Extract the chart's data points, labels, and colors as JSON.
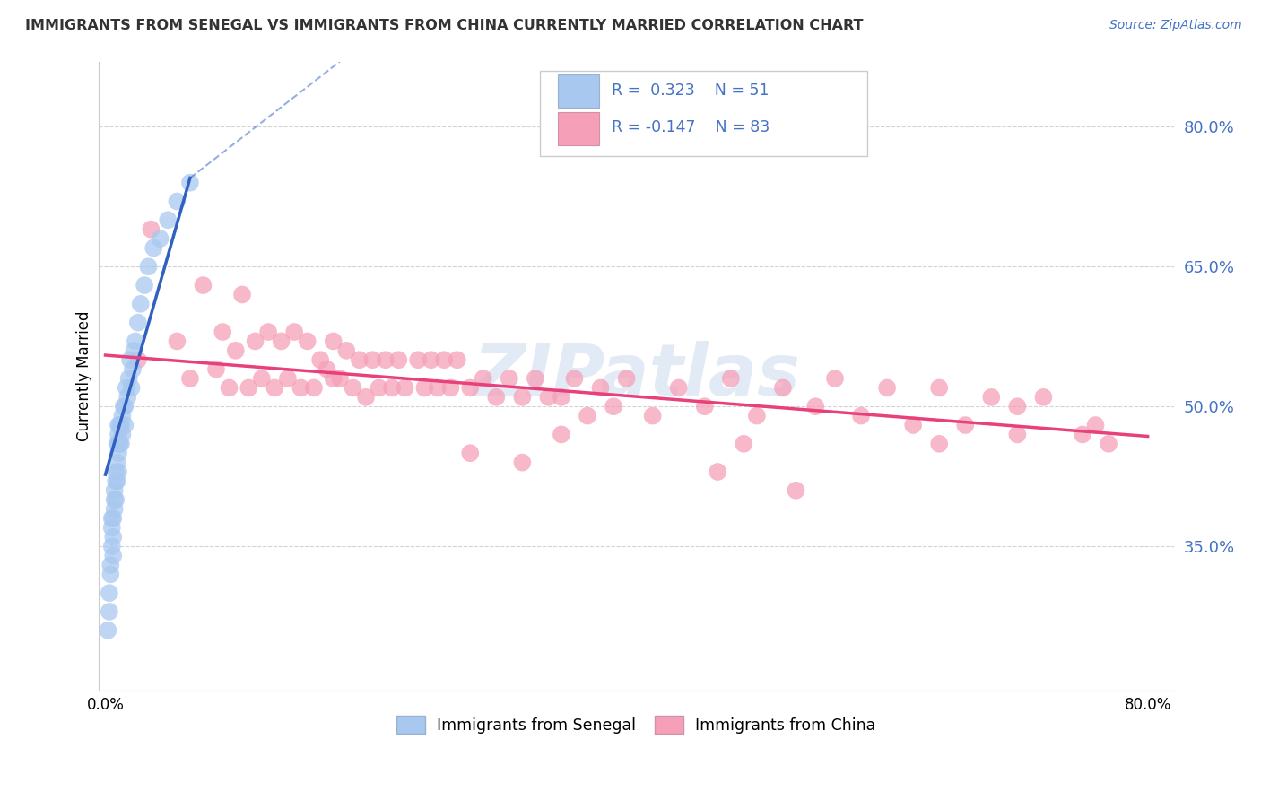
{
  "title": "IMMIGRANTS FROM SENEGAL VS IMMIGRANTS FROM CHINA CURRENTLY MARRIED CORRELATION CHART",
  "source": "Source: ZipAtlas.com",
  "ylabel": "Currently Married",
  "xlabel_senegal": "Immigrants from Senegal",
  "xlabel_china": "Immigrants from China",
  "xlim": [
    -0.005,
    0.82
  ],
  "ylim": [
    0.195,
    0.87
  ],
  "yticks": [
    0.35,
    0.5,
    0.65,
    0.8
  ],
  "ytick_labels": [
    "35.0%",
    "50.0%",
    "65.0%",
    "80.0%"
  ],
  "legend_r_senegal": "R =  0.323",
  "legend_n_senegal": "N = 51",
  "legend_r_china": "R = -0.147",
  "legend_n_china": "N = 83",
  "color_senegal": "#a8c8f0",
  "color_china": "#f5a0b8",
  "trendline_senegal_color": "#3060c0",
  "trendline_china_color": "#e8407a",
  "watermark": "ZIPatlas",
  "title_color": "#333333",
  "source_color": "#4472c4",
  "tick_color": "#4472c4",
  "senegal_x": [
    0.002,
    0.003,
    0.003,
    0.004,
    0.004,
    0.005,
    0.005,
    0.005,
    0.006,
    0.006,
    0.006,
    0.007,
    0.007,
    0.007,
    0.008,
    0.008,
    0.008,
    0.009,
    0.009,
    0.009,
    0.01,
    0.01,
    0.01,
    0.01,
    0.01,
    0.011,
    0.011,
    0.012,
    0.012,
    0.013,
    0.013,
    0.014,
    0.015,
    0.015,
    0.016,
    0.017,
    0.018,
    0.019,
    0.02,
    0.021,
    0.022,
    0.023,
    0.025,
    0.027,
    0.03,
    0.033,
    0.037,
    0.042,
    0.048,
    0.055,
    0.065
  ],
  "senegal_y": [
    0.26,
    0.28,
    0.3,
    0.32,
    0.33,
    0.35,
    0.37,
    0.38,
    0.34,
    0.36,
    0.38,
    0.39,
    0.4,
    0.41,
    0.4,
    0.42,
    0.43,
    0.42,
    0.44,
    0.46,
    0.43,
    0.45,
    0.46,
    0.47,
    0.48,
    0.46,
    0.48,
    0.46,
    0.48,
    0.47,
    0.49,
    0.5,
    0.48,
    0.5,
    0.52,
    0.51,
    0.53,
    0.55,
    0.52,
    0.54,
    0.56,
    0.57,
    0.59,
    0.61,
    0.63,
    0.65,
    0.67,
    0.68,
    0.7,
    0.72,
    0.74
  ],
  "china_x": [
    0.025,
    0.035,
    0.055,
    0.065,
    0.075,
    0.085,
    0.09,
    0.095,
    0.1,
    0.105,
    0.11,
    0.115,
    0.12,
    0.125,
    0.13,
    0.135,
    0.14,
    0.145,
    0.15,
    0.155,
    0.16,
    0.165,
    0.17,
    0.175,
    0.175,
    0.18,
    0.185,
    0.19,
    0.195,
    0.2,
    0.205,
    0.21,
    0.215,
    0.22,
    0.225,
    0.23,
    0.24,
    0.245,
    0.25,
    0.255,
    0.26,
    0.265,
    0.27,
    0.28,
    0.29,
    0.3,
    0.31,
    0.32,
    0.33,
    0.34,
    0.35,
    0.36,
    0.37,
    0.38,
    0.39,
    0.4,
    0.42,
    0.44,
    0.46,
    0.48,
    0.5,
    0.52,
    0.545,
    0.56,
    0.58,
    0.6,
    0.62,
    0.64,
    0.66,
    0.68,
    0.7,
    0.72,
    0.64,
    0.7,
    0.75,
    0.76,
    0.77,
    0.28,
    0.32,
    0.49,
    0.47,
    0.53,
    0.35
  ],
  "china_y": [
    0.55,
    0.69,
    0.57,
    0.53,
    0.63,
    0.54,
    0.58,
    0.52,
    0.56,
    0.62,
    0.52,
    0.57,
    0.53,
    0.58,
    0.52,
    0.57,
    0.53,
    0.58,
    0.52,
    0.57,
    0.52,
    0.55,
    0.54,
    0.57,
    0.53,
    0.53,
    0.56,
    0.52,
    0.55,
    0.51,
    0.55,
    0.52,
    0.55,
    0.52,
    0.55,
    0.52,
    0.55,
    0.52,
    0.55,
    0.52,
    0.55,
    0.52,
    0.55,
    0.52,
    0.53,
    0.51,
    0.53,
    0.51,
    0.53,
    0.51,
    0.51,
    0.53,
    0.49,
    0.52,
    0.5,
    0.53,
    0.49,
    0.52,
    0.5,
    0.53,
    0.49,
    0.52,
    0.5,
    0.53,
    0.49,
    0.52,
    0.48,
    0.52,
    0.48,
    0.51,
    0.47,
    0.51,
    0.46,
    0.5,
    0.47,
    0.48,
    0.46,
    0.45,
    0.44,
    0.46,
    0.43,
    0.41,
    0.47
  ],
  "trendline_senegal_x0": 0.0,
  "trendline_senegal_x1": 0.065,
  "trendline_senegal_y0": 0.427,
  "trendline_senegal_y1": 0.745,
  "trendline_senegal_dashed_x0": 0.065,
  "trendline_senegal_dashed_x1": 0.18,
  "trendline_senegal_dashed_y0": 0.745,
  "trendline_senegal_dashed_y1": 0.87,
  "trendline_china_x0": 0.0,
  "trendline_china_x1": 0.8,
  "trendline_china_y0": 0.555,
  "trendline_china_y1": 0.468
}
